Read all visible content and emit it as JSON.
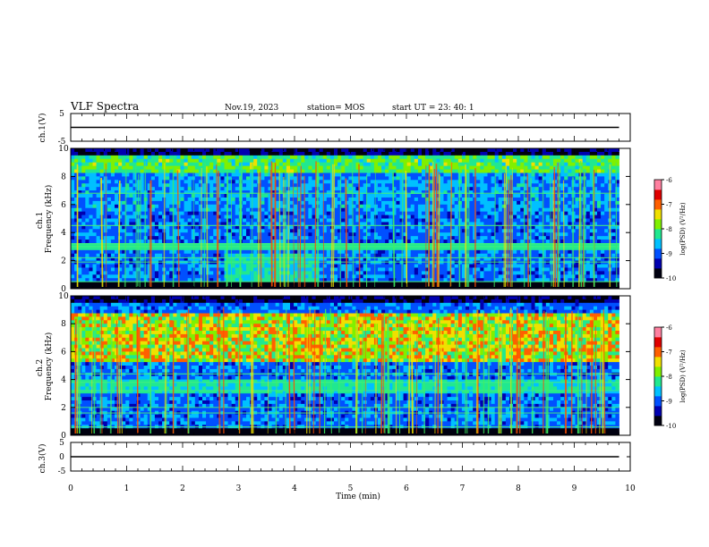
{
  "header": {
    "title": "VLF Spectra",
    "date": "Nov.19, 2023",
    "station": "station= MOS",
    "start": "start  UT =   23: 40: 1"
  },
  "colorbar": {
    "label": "log(PSD) (V²/Hz)",
    "ticks": [
      "-6",
      "-7",
      "-8",
      "-9",
      "-10"
    ]
  },
  "chart_data": [
    {
      "type": "line",
      "name": "ch1-voltage",
      "ylabel": "ch.1(V)",
      "ylim": [
        -5,
        5
      ],
      "y_ticks": [
        "5",
        "-5"
      ],
      "x": [
        0,
        9.8
      ],
      "y": [
        0,
        0
      ]
    },
    {
      "type": "heatmap",
      "name": "ch1-spectrogram",
      "ylabel": "ch.1\nFrequency (kHz)",
      "xlim": [
        0,
        10
      ],
      "ylim": [
        0,
        10
      ],
      "data_xlim": [
        0,
        9.8
      ],
      "y_ticks": [
        "0",
        "2",
        "4",
        "6",
        "8",
        "10"
      ],
      "color_scale": [
        -10,
        -6
      ],
      "colors": [
        "#000010",
        "#0000b0",
        "#0050ff",
        "#00c0ff",
        "#20e890",
        "#80f000",
        "#f0e000",
        "#ff6000",
        "#e00000",
        "#ff80a0"
      ],
      "features": {
        "mid_band_kHz": [
          2.8,
          3.3
        ],
        "elevated_low_band_kHz": [
          0.4,
          2.4
        ],
        "elevated_low_band_min": [
          2.7,
          4.4
        ],
        "bright_lines_kHz": [
          0.5,
          1.9,
          2.2,
          3.0,
          3.2,
          4.5,
          6.8
        ]
      }
    },
    {
      "type": "heatmap",
      "name": "ch2-spectrogram",
      "ylabel": "ch.2\nFrequency (kHz)",
      "xlim": [
        0,
        10
      ],
      "ylim": [
        0,
        10
      ],
      "data_xlim": [
        0,
        9.8
      ],
      "y_ticks": [
        "0",
        "2",
        "4",
        "6",
        "8",
        "10"
      ],
      "color_scale": [
        -10,
        -6
      ],
      "colors": [
        "#000010",
        "#0000b0",
        "#0050ff",
        "#00c0ff",
        "#20e890",
        "#80f000",
        "#f0e000",
        "#ff6000",
        "#e00000",
        "#ff80a0"
      ],
      "features": {
        "intense_band_kHz": [
          5.3,
          8.8
        ],
        "mid_band_kHz": [
          3.0,
          4.0
        ],
        "bright_lines_kHz": [
          0.6,
          1.6,
          2.0,
          3.2,
          3.8,
          4.4
        ]
      }
    },
    {
      "type": "line",
      "name": "ch3-voltage",
      "ylabel": "ch.3(V)",
      "ylim": [
        -5,
        5
      ],
      "y_ticks": [
        "5",
        "0",
        "-5"
      ],
      "x": [
        0,
        9.8
      ],
      "y": [
        0,
        0
      ]
    }
  ],
  "x_axis": {
    "label": "Time (min)",
    "ticks": [
      "0",
      "1",
      "2",
      "3",
      "4",
      "5",
      "6",
      "7",
      "8",
      "9",
      "10"
    ],
    "xlim": [
      0,
      10
    ]
  }
}
